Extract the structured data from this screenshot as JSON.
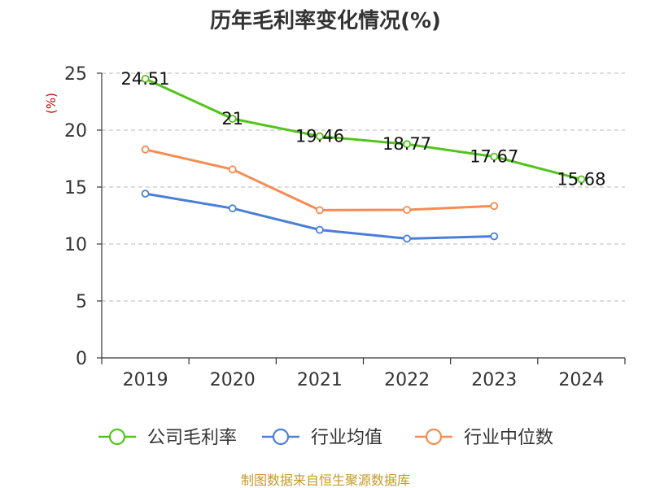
{
  "chart_data": {
    "type": "line",
    "title": "历年毛利率变化情况(%)",
    "ylabel": "(%)",
    "xlabel": "",
    "categories": [
      "2019",
      "2020",
      "2021",
      "2022",
      "2023",
      "2024"
    ],
    "ylim": [
      0,
      25
    ],
    "yticks": [
      0,
      5,
      10,
      15,
      20,
      25
    ],
    "grid": true,
    "legend_position": "bottom",
    "series": [
      {
        "name": "公司毛利率",
        "color": "#52c41a",
        "values": [
          24.51,
          21,
          19.46,
          18.77,
          17.67,
          15.68
        ],
        "labels": [
          "24.51",
          "21",
          "19.46",
          "18.77",
          "17.67",
          "15.68"
        ]
      },
      {
        "name": "行业均值",
        "color": "#4a7fd9",
        "values": [
          14.42,
          13.13,
          11.24,
          10.47,
          10.68,
          null
        ]
      },
      {
        "name": "行业中位数",
        "color": "#f58c54",
        "values": [
          18.3,
          16.55,
          12.97,
          13.0,
          13.34,
          null
        ]
      }
    ]
  },
  "source": "制图数据来自恒生聚源数据库"
}
